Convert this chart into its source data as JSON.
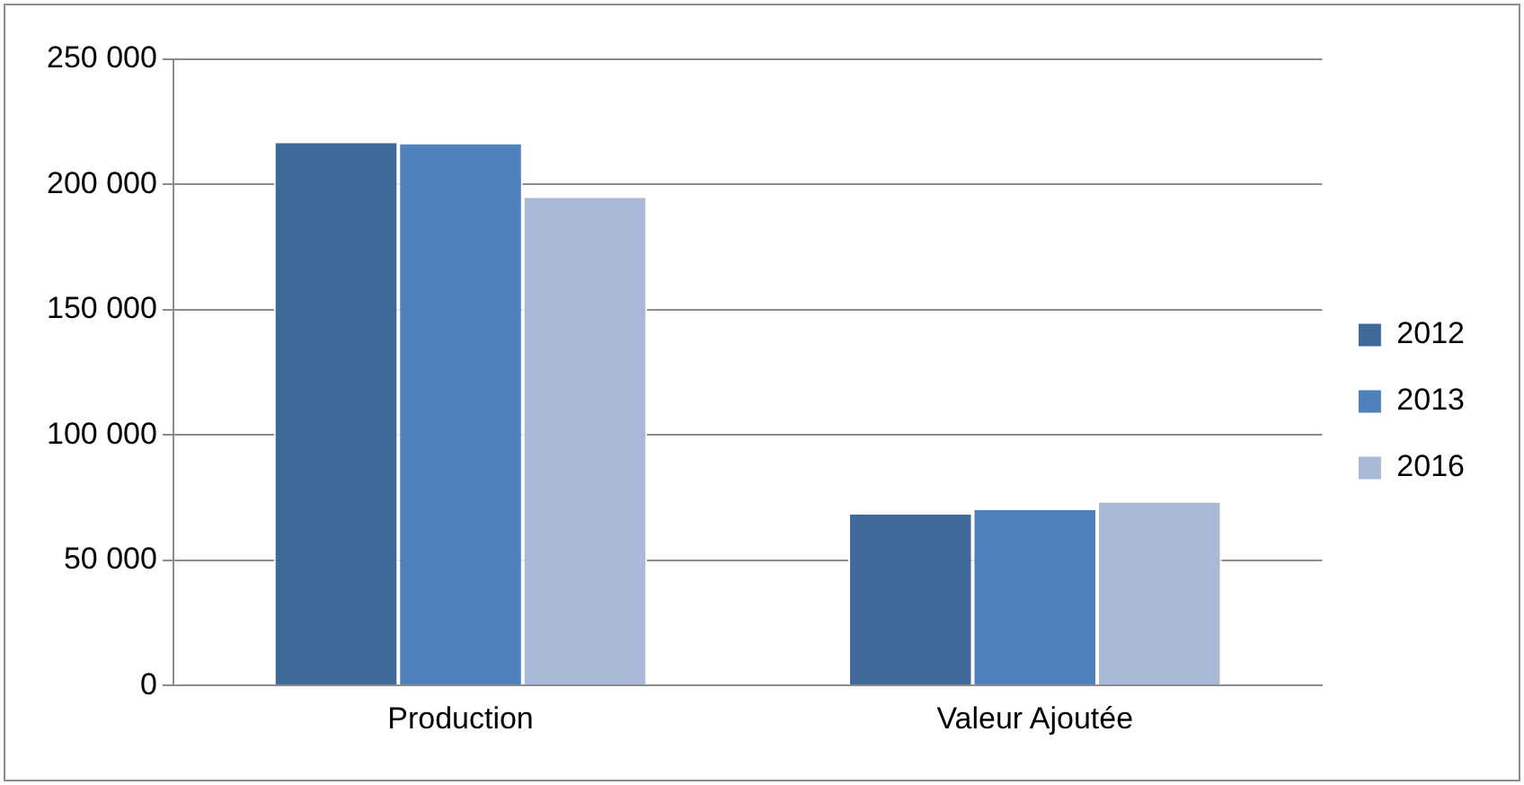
{
  "chart_data": {
    "type": "bar",
    "categories": [
      "Production",
      "Valeur Ajoutée"
    ],
    "series": [
      {
        "name": "2012",
        "color": "#3f6998",
        "values": [
          216600,
          68300
        ]
      },
      {
        "name": "2013",
        "color": "#4f81bd",
        "values": [
          216100,
          70000
        ]
      },
      {
        "name": "2016",
        "color": "#aab9d8",
        "values": [
          194700,
          73000
        ]
      }
    ],
    "ylim": [
      0,
      250000
    ],
    "yticks": [
      {
        "value": 0,
        "label": "0"
      },
      {
        "value": 50000,
        "label": "50 000"
      },
      {
        "value": 100000,
        "label": "100 000"
      },
      {
        "value": 150000,
        "label": "150 000"
      },
      {
        "value": 200000,
        "label": "200 000"
      },
      {
        "value": 250000,
        "label": "250 000"
      }
    ],
    "grid": "y",
    "legend": "right"
  }
}
